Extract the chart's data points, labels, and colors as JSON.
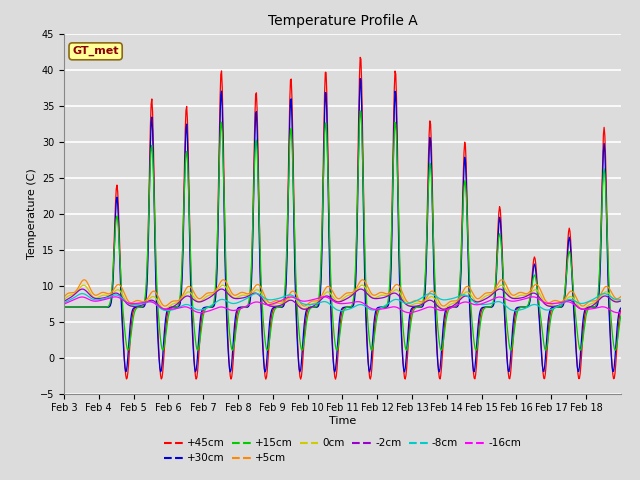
{
  "title": "Temperature Profile A",
  "xlabel": "Time",
  "ylabel": "Temperature (C)",
  "ylim": [
    -5,
    45
  ],
  "annotation_text": "GT_met",
  "annotation_color": "#8B0000",
  "annotation_bg": "#FFFF99",
  "annotation_border": "#8B6914",
  "bg_color": "#DCDCDC",
  "grid_color": "#FFFFFF",
  "series": [
    {
      "label": "+45cm",
      "color": "#FF0000",
      "linewidth": 0.9,
      "linestyle": "-"
    },
    {
      "label": "+30cm",
      "color": "#0000DD",
      "linewidth": 0.9,
      "linestyle": "-"
    },
    {
      "label": "+15cm",
      "color": "#00CC00",
      "linewidth": 0.9,
      "linestyle": "-"
    },
    {
      "label": "+5cm",
      "color": "#FF8800",
      "linewidth": 0.9,
      "linestyle": "-"
    },
    {
      "label": "0cm",
      "color": "#CCCC00",
      "linewidth": 0.9,
      "linestyle": "-"
    },
    {
      "label": "-2cm",
      "color": "#9900CC",
      "linewidth": 0.9,
      "linestyle": "-"
    },
    {
      "label": "-8cm",
      "color": "#00CCCC",
      "linewidth": 0.9,
      "linestyle": "-"
    },
    {
      "label": "-16cm",
      "color": "#FF00FF",
      "linewidth": 0.9,
      "linestyle": "-"
    }
  ],
  "xtick_labels": [
    "Feb 3",
    "Feb 4",
    "Feb 5",
    "Feb 6",
    "Feb 7",
    "Feb 8",
    "Feb 9",
    "Feb 10",
    "Feb 11",
    "Feb 12",
    "Feb 13",
    "Feb 14",
    "Feb 15",
    "Feb 16",
    "Feb 17",
    "Feb 18"
  ],
  "yticks": [
    -5,
    0,
    5,
    10,
    15,
    20,
    25,
    30,
    35,
    40,
    45
  ],
  "figsize": [
    6.4,
    4.8
  ],
  "dpi": 100
}
